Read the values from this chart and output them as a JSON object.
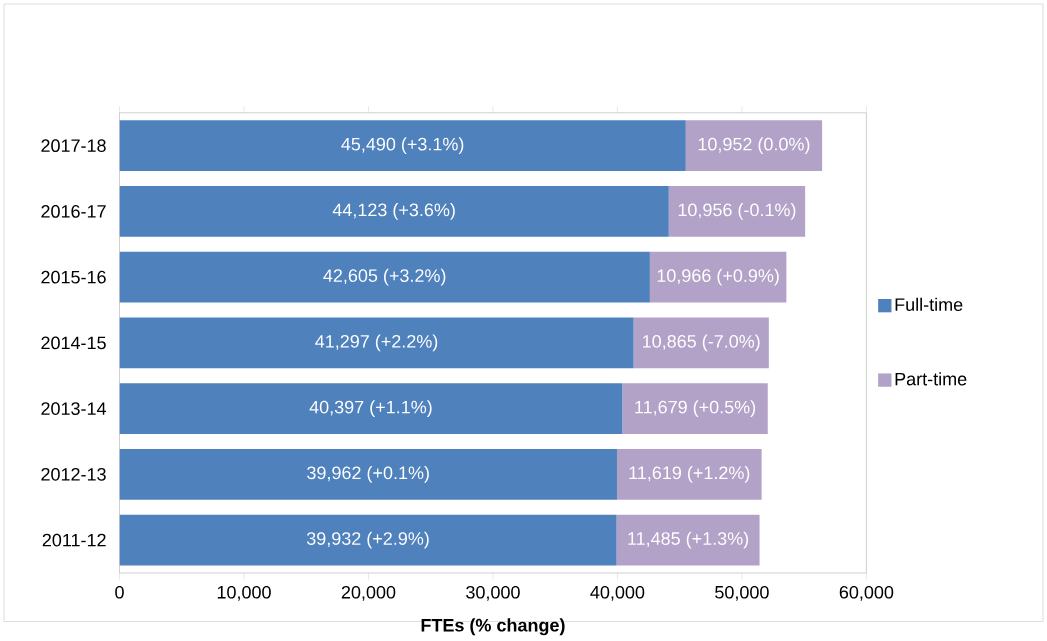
{
  "chart_data": {
    "type": "bar",
    "orientation": "horizontal",
    "stacked": true,
    "xlabel": "FTEs (% change)",
    "categories": [
      "2017-18",
      "2016-17",
      "2015-16",
      "2014-15",
      "2013-14",
      "2012-13",
      "2011-12"
    ],
    "series": [
      {
        "name": "Full-time",
        "color": "#4f81bd",
        "values": [
          45490,
          44123,
          42605,
          41297,
          40397,
          39962,
          39932
        ],
        "value_labels": [
          "45,490 (+3.1%)",
          "44,123 (+3.6%)",
          "42,605 (+3.2%)",
          "41,297 (+2.2%)",
          "40,397 (+1.1%)",
          "39,962 (+0.1%)",
          "39,932 (+2.9%)"
        ]
      },
      {
        "name": "Part-time",
        "color": "#b3a2c7",
        "values": [
          10952,
          10956,
          10966,
          10865,
          11679,
          11619,
          11485
        ],
        "value_labels": [
          "10,952 (0.0%)",
          "10,956 (-0.1%)",
          "10,966 (+0.9%)",
          "10,865 (-7.0%)",
          "11,679 (+0.5%)",
          "11,619 (+1.2%)",
          "11,485 (+1.3%)"
        ]
      }
    ],
    "xlim": [
      0,
      60000
    ],
    "xticks": [
      {
        "value": 0,
        "label": "0"
      },
      {
        "value": 10000,
        "label": "10,000"
      },
      {
        "value": 20000,
        "label": "20,000"
      },
      {
        "value": 30000,
        "label": "30,000"
      },
      {
        "value": 40000,
        "label": "40,000"
      },
      {
        "value": 50000,
        "label": "50,000"
      },
      {
        "value": 60000,
        "label": "60,000"
      }
    ],
    "grid": false,
    "legend": "right"
  }
}
